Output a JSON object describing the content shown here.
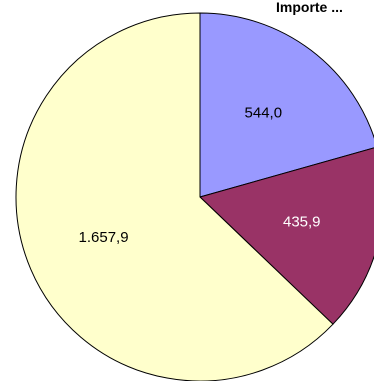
{
  "chart_data": {
    "type": "pie",
    "title": "Importe ...",
    "slices": [
      {
        "label": "544,0",
        "value": 544.0,
        "color": "#9999ff",
        "text_color": "#000000"
      },
      {
        "label": "435,9",
        "value": 435.9,
        "color": "#993366",
        "text_color": "#ffffff"
      },
      {
        "label": "1.657,9",
        "value": 1657.9,
        "color": "#ffffcc",
        "text_color": "#000000"
      }
    ],
    "start_angle_deg": 0,
    "direction": "clockwise",
    "outline_color": "#000000"
  }
}
